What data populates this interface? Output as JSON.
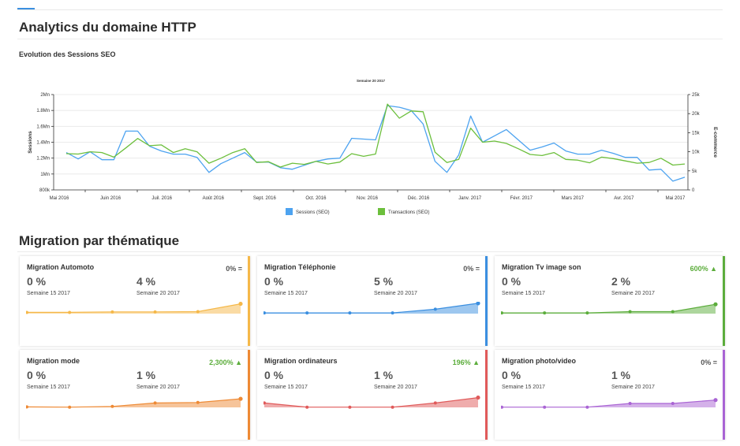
{
  "page": {
    "title": "Analytics du domaine HTTP"
  },
  "chart_title": "Evolution des Sessions SEO",
  "chart_data": {
    "type": "line",
    "title": "Semaine 20 2017",
    "ylabel": "Sessions",
    "y2label": "E-commerce",
    "ylim": [
      800000,
      2000000
    ],
    "y2lim": [
      0,
      25000
    ],
    "y_ticks": [
      "800k",
      "1Mn",
      "1.2Mn",
      "1.4Mn",
      "1.6Mn",
      "1.8Mn",
      "2Mn"
    ],
    "y2_ticks": [
      "0",
      "5k",
      "10k",
      "15k",
      "20k",
      "25k"
    ],
    "x_labels": [
      "Mai 2016",
      "Juin 2016",
      "Juil. 2016",
      "Août 2016",
      "Sept. 2016",
      "Oct. 2016",
      "Nov. 2016",
      "Déc. 2016",
      "Janv. 2017",
      "Févr. 2017",
      "Mars 2017",
      "Avr. 2017",
      "Mai 2017"
    ],
    "legend_position": "bottom",
    "grid": true,
    "series": [
      {
        "name": "Sessions (SEO)",
        "axis": "left",
        "color": "#4da3f0",
        "values": [
          1270000,
          1190000,
          1280000,
          1180000,
          1180000,
          1540000,
          1540000,
          1350000,
          1290000,
          1250000,
          1250000,
          1210000,
          1020000,
          1130000,
          1200000,
          1270000,
          1150000,
          1150000,
          1080000,
          1060000,
          1110000,
          1160000,
          1190000,
          1200000,
          1450000,
          1440000,
          1430000,
          1860000,
          1840000,
          1800000,
          1630000,
          1160000,
          1020000,
          1240000,
          1730000,
          1400000,
          1480000,
          1560000,
          1430000,
          1300000,
          1340000,
          1390000,
          1290000,
          1250000,
          1250000,
          1300000,
          1260000,
          1210000,
          1210000,
          1050000,
          1060000,
          910000,
          960000
        ]
      },
      {
        "name": "Transactions (SEO)",
        "axis": "right",
        "color": "#6cbf3c",
        "values": [
          9500,
          9400,
          10000,
          9800,
          8600,
          11000,
          13500,
          11600,
          11800,
          9800,
          10800,
          10000,
          7000,
          8300,
          9800,
          10800,
          7200,
          7400,
          6000,
          7000,
          6700,
          7500,
          6800,
          7300,
          9500,
          8800,
          9400,
          22500,
          18800,
          20700,
          20500,
          9900,
          7200,
          8000,
          16200,
          12500,
          12800,
          12200,
          10800,
          9300,
          9000,
          9800,
          8000,
          7800,
          7100,
          8600,
          8200,
          7600,
          7000,
          7200,
          8300,
          6500,
          6800
        ]
      }
    ]
  },
  "section": {
    "title": "Migration par thématique"
  },
  "cards": [
    {
      "title": "Migration Automoto",
      "change": "0% =",
      "from_value": "0 %",
      "to_value": "4 %",
      "from_week": "Semaine 15 2017",
      "to_week": "Semaine 20 2017",
      "color": "#f5b849",
      "change_color": "#555555",
      "values": [
        0.5,
        0.5,
        0.7,
        0.7,
        0.8,
        4
      ]
    },
    {
      "title": "Migration Téléphonie",
      "change": "0% =",
      "from_value": "0 %",
      "to_value": "5 %",
      "from_week": "Semaine 15 2017",
      "to_week": "Semaine 20 2017",
      "color": "#3b8fe0",
      "change_color": "#555555",
      "values": [
        0.3,
        0.3,
        0.3,
        0.3,
        1.8,
        4.2
      ]
    },
    {
      "title": "Migration Tv image son",
      "change": "600% ▲",
      "from_value": "0 %",
      "to_value": "2 %",
      "from_week": "Semaine 15 2017",
      "to_week": "Semaine 20 2017",
      "color": "#5cad3c",
      "change_color": "#5cad3c",
      "values": [
        0.3,
        0.3,
        0.3,
        0.8,
        0.8,
        3.8
      ]
    },
    {
      "title": "Migration mode",
      "change": "2,300% ▲",
      "from_value": "0 %",
      "to_value": "1 %",
      "from_week": "Semaine 15 2017",
      "to_week": "Semaine 20 2017",
      "color": "#ee8a35",
      "change_color": "#5cad3c",
      "values": [
        0.2,
        0.1,
        0.4,
        1.8,
        2.0,
        3.5
      ]
    },
    {
      "title": "Migration ordinateurs",
      "change": "196% ▲",
      "from_value": "0 %",
      "to_value": "1 %",
      "from_week": "Semaine 15 2017",
      "to_week": "Semaine 20 2017",
      "color": "#e05a5a",
      "change_color": "#5cad3c",
      "values": [
        1.8,
        0.1,
        0.1,
        0.1,
        1.8,
        4.0
      ]
    },
    {
      "title": "Migration photo/video",
      "change": "0% =",
      "from_value": "0 %",
      "to_value": "1 %",
      "from_week": "Semaine 15 2017",
      "to_week": "Semaine 20 2017",
      "color": "#a964d4",
      "change_color": "#555555",
      "values": [
        0.1,
        0.1,
        0.1,
        1.6,
        1.6,
        3.0
      ]
    }
  ]
}
